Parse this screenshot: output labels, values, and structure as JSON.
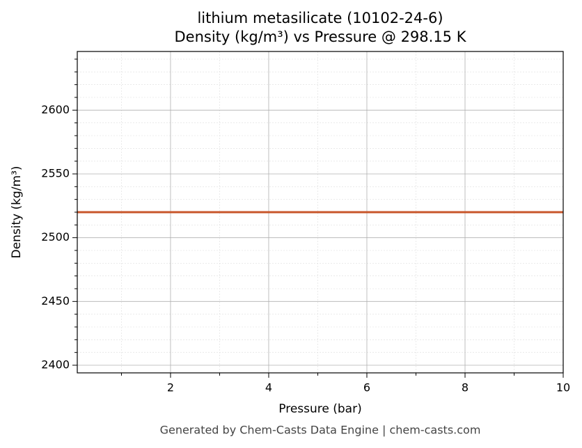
{
  "chart_data": {
    "type": "line",
    "title": "lithium metasilicate (10102-24-6)",
    "subtitle": "Density (kg/m³) vs Pressure @ 298.15 K",
    "xlabel": "Pressure (bar)",
    "ylabel": "Density (kg/m³)",
    "footer": "Generated by Chem-Casts Data Engine | chem-casts.com",
    "x": [
      0.1,
      10
    ],
    "series": [
      {
        "name": "lithium metasilicate",
        "color": "#c8562a",
        "values": [
          2520,
          2520
        ]
      }
    ],
    "xlim": [
      0.1,
      10
    ],
    "ylim": [
      2394,
      2646
    ],
    "xticks": [
      2,
      4,
      6,
      8,
      10
    ],
    "yticks": [
      2400,
      2450,
      2500,
      2550,
      2600
    ],
    "xminor": [
      1,
      3,
      5,
      7,
      9
    ],
    "yminor": [
      2410,
      2420,
      2430,
      2440,
      2460,
      2470,
      2480,
      2490,
      2510,
      2520,
      2530,
      2540,
      2560,
      2570,
      2580,
      2590,
      2610,
      2620,
      2630,
      2640
    ],
    "grid": true
  }
}
